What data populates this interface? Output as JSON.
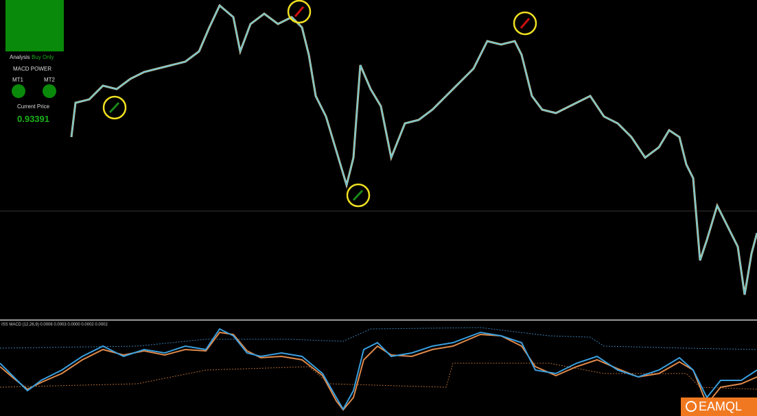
{
  "panel": {
    "analysis_label": "Analysis",
    "analysis_value": "Buy Only",
    "title": "MACD POWER",
    "mt1": "MT1",
    "mt2": "MT2",
    "price_label": "Current Price",
    "price": "0.93391"
  },
  "indicator": {
    "label": "ISS MACD (12,26,9) 0.0006 0.0003 0.0000 0.0002 0.0002"
  },
  "logo": "EAMQL"
}
